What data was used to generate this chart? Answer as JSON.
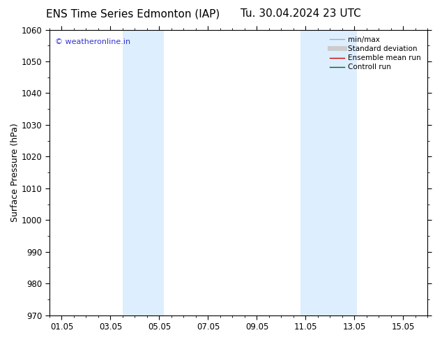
{
  "title_left": "ENS Time Series Edmonton (IAP)",
  "title_right": "Tu. 30.04.2024 23 UTC",
  "ylabel": "Surface Pressure (hPa)",
  "ylim": [
    970,
    1060
  ],
  "yticks": [
    970,
    980,
    990,
    1000,
    1010,
    1020,
    1030,
    1040,
    1050,
    1060
  ],
  "xtick_labels": [
    "01.05",
    "03.05",
    "05.05",
    "07.05",
    "09.05",
    "11.05",
    "13.05",
    "15.05"
  ],
  "xtick_positions": [
    1,
    3,
    5,
    7,
    9,
    11,
    13,
    15
  ],
  "xlim": [
    0.5,
    16
  ],
  "shaded_bands": [
    {
      "start": 3.5,
      "end": 5.2,
      "color": "#ddeeff"
    },
    {
      "start": 10.8,
      "end": 13.1,
      "color": "#ddeeff"
    }
  ],
  "background_color": "#ffffff",
  "plot_bg_color": "#ffffff",
  "watermark_text": "© weatheronline.in",
  "watermark_color": "#3333cc",
  "legend_items": [
    {
      "label": "min/max",
      "color": "#aaaaaa",
      "linewidth": 1.0,
      "linestyle": "-"
    },
    {
      "label": "Standard deviation",
      "color": "#cccccc",
      "linewidth": 5,
      "linestyle": "-"
    },
    {
      "label": "Ensemble mean run",
      "color": "#cc0000",
      "linewidth": 1.0,
      "linestyle": "-"
    },
    {
      "label": "Controll run",
      "color": "#006600",
      "linewidth": 1.0,
      "linestyle": "-"
    }
  ],
  "title_fontsize": 11,
  "axis_label_fontsize": 9,
  "tick_fontsize": 8.5,
  "minor_ticks": 4
}
